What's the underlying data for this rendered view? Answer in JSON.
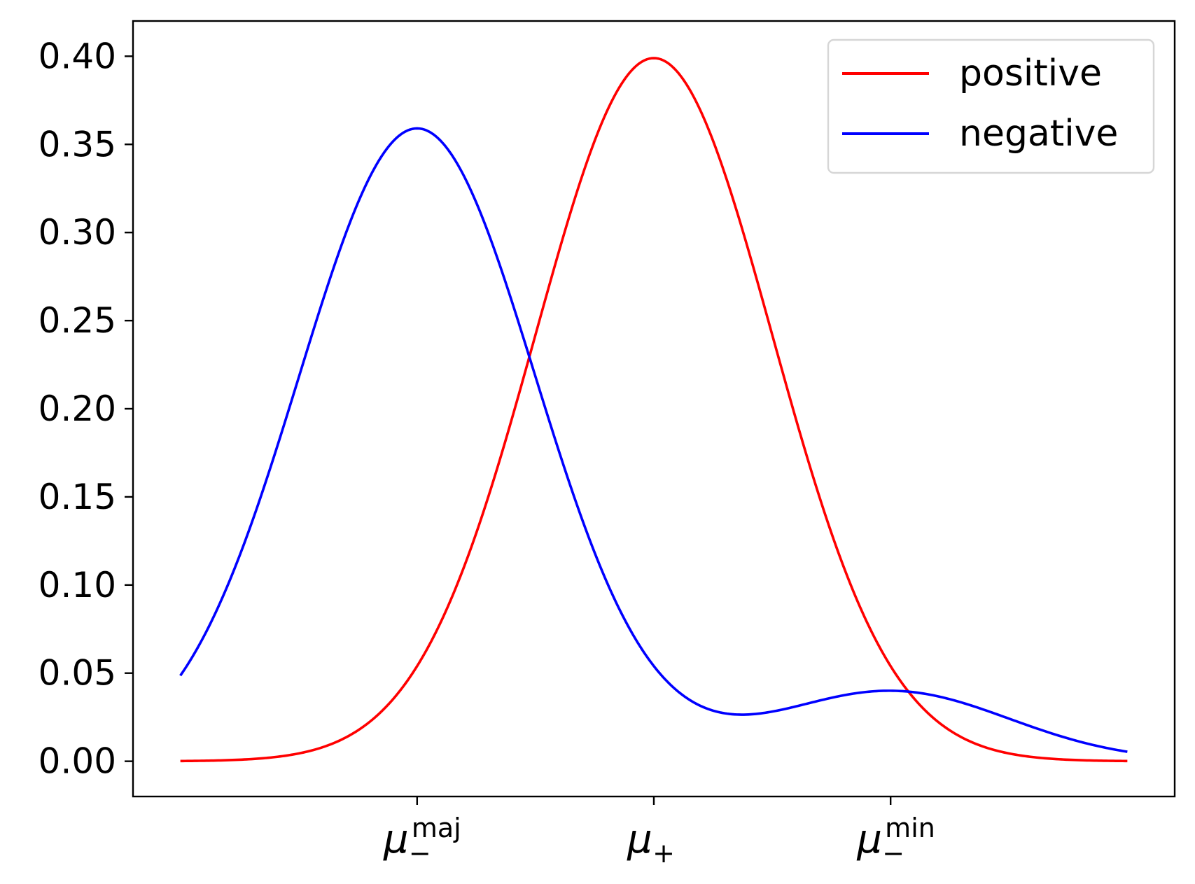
{
  "chart_data": {
    "type": "line",
    "title": "",
    "xlabel": "",
    "ylabel": "",
    "xlim": [
      -4.4,
      4.4
    ],
    "ylim": [
      -0.02,
      0.42
    ],
    "grid": false,
    "legend": {
      "placement": "top-right"
    },
    "yticks": [
      {
        "value": 0.0,
        "label": "0.00"
      },
      {
        "value": 0.05,
        "label": "0.05"
      },
      {
        "value": 0.1,
        "label": "0.10"
      },
      {
        "value": 0.15,
        "label": "0.15"
      },
      {
        "value": 0.2,
        "label": "0.20"
      },
      {
        "value": 0.25,
        "label": "0.25"
      },
      {
        "value": 0.3,
        "label": "0.30"
      },
      {
        "value": 0.35,
        "label": "0.35"
      },
      {
        "value": 0.4,
        "label": "0.40"
      }
    ],
    "xticks": [
      {
        "value": -2,
        "base": "μ",
        "sub": "−",
        "sup": "maj"
      },
      {
        "value": 0,
        "base": "μ",
        "sub": "+",
        "sup": ""
      },
      {
        "value": 2,
        "base": "μ",
        "sub": "−",
        "sup": "min"
      }
    ],
    "x_range": [
      -4,
      4
    ],
    "series": [
      {
        "name": "positive",
        "color": "#ff0000",
        "components": [
          {
            "mean": 0,
            "std": 1,
            "weight": 1.0
          }
        ]
      },
      {
        "name": "negative",
        "color": "#0000ff",
        "components": [
          {
            "mean": -2,
            "std": 1,
            "weight": 0.9
          },
          {
            "mean": 2,
            "std": 1,
            "weight": 0.1
          }
        ]
      }
    ]
  }
}
